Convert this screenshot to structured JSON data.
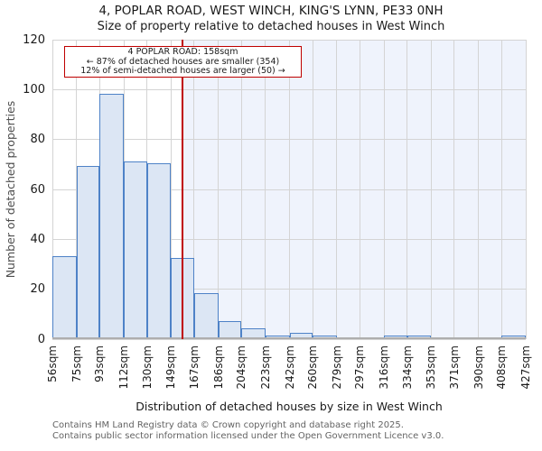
{
  "header": {
    "title": "4, POPLAR ROAD, WEST WINCH, KING'S LYNN, PE33 0NH",
    "subtitle": "Size of property relative to detached houses in West Winch"
  },
  "annotation": {
    "line1": "4 POPLAR ROAD: 158sqm",
    "line2": "← 87% of detached houses are smaller (354)",
    "line3": "12% of semi-detached houses are larger (50) →"
  },
  "chart_data": {
    "type": "bar",
    "title": "4, POPLAR ROAD, WEST WINCH, KING'S LYNN, PE33 0NH",
    "subtitle": "Size of property relative to detached houses in West Winch",
    "categories": [
      "56sqm",
      "75sqm",
      "93sqm",
      "112sqm",
      "130sqm",
      "149sqm",
      "167sqm",
      "186sqm",
      "204sqm",
      "223sqm",
      "242sqm",
      "260sqm",
      "279sqm",
      "297sqm",
      "316sqm",
      "334sqm",
      "353sqm",
      "371sqm",
      "390sqm",
      "408sqm",
      "427sqm"
    ],
    "bin_edges_sqm": [
      56,
      75,
      93,
      112,
      130,
      149,
      167,
      186,
      204,
      223,
      242,
      260,
      279,
      297,
      316,
      334,
      353,
      371,
      390,
      408,
      427
    ],
    "values": [
      33,
      69,
      98,
      71,
      70,
      32,
      18,
      7,
      4,
      1,
      2,
      1,
      0,
      0,
      1,
      1,
      0,
      0,
      0,
      1
    ],
    "xlabel": "Distribution of detached houses by size in West Winch",
    "ylabel": "Number of detached properties",
    "ylim": [
      0,
      120
    ],
    "yticks": [
      0,
      20,
      40,
      60,
      80,
      100,
      120
    ],
    "grid": true,
    "legend": "none",
    "marker": {
      "value_sqm": 158,
      "label": "4 POPLAR ROAD: 158sqm"
    },
    "shaded_region": {
      "from_sqm": 158,
      "to_sqm": 427
    }
  },
  "colors": {
    "bar_fill": "#dce6f4",
    "bar_edge": "#4e82c7",
    "marker_line": "#bf0000",
    "annotation_border": "#bf0000",
    "shade": "#eff3fc",
    "gridline": "#d4d4d4",
    "axis_line": "#aeaeae",
    "footer_text": "#636363"
  },
  "footer": {
    "line1": "Contains HM Land Registry data © Crown copyright and database right 2025.",
    "line2": "Contains public sector information licensed under the Open Government Licence v3.0."
  }
}
